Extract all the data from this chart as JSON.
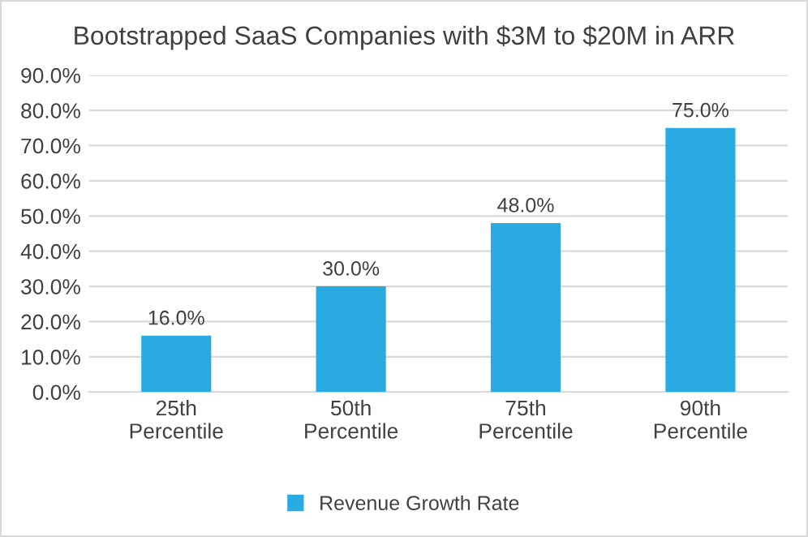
{
  "chart_data": {
    "type": "bar",
    "title": "Bootstrapped SaaS Companies with $3M to $20M in ARR",
    "categories": [
      "25th Percentile",
      "50th Percentile",
      "75th Percentile",
      "90th Percentile"
    ],
    "series": [
      {
        "name": "Revenue Growth Rate",
        "color": "#29abe2",
        "values": [
          16,
          30,
          48,
          75
        ],
        "value_labels": [
          "16.0%",
          "30.0%",
          "48.0%",
          "75.0%"
        ]
      }
    ],
    "ylim": [
      0,
      90
    ],
    "yticks": [
      {
        "value": 0,
        "label": "0.0%"
      },
      {
        "value": 10,
        "label": "10.0%"
      },
      {
        "value": 20,
        "label": "20.0%"
      },
      {
        "value": 30,
        "label": "30.0%"
      },
      {
        "value": 40,
        "label": "40.0%"
      },
      {
        "value": 50,
        "label": "50.0%"
      },
      {
        "value": 60,
        "label": "60.0%"
      },
      {
        "value": 70,
        "label": "70.0%"
      },
      {
        "value": 80,
        "label": "80.0%"
      },
      {
        "value": 90,
        "label": "90.0%"
      }
    ],
    "grid": "y",
    "legend": "bottom"
  }
}
